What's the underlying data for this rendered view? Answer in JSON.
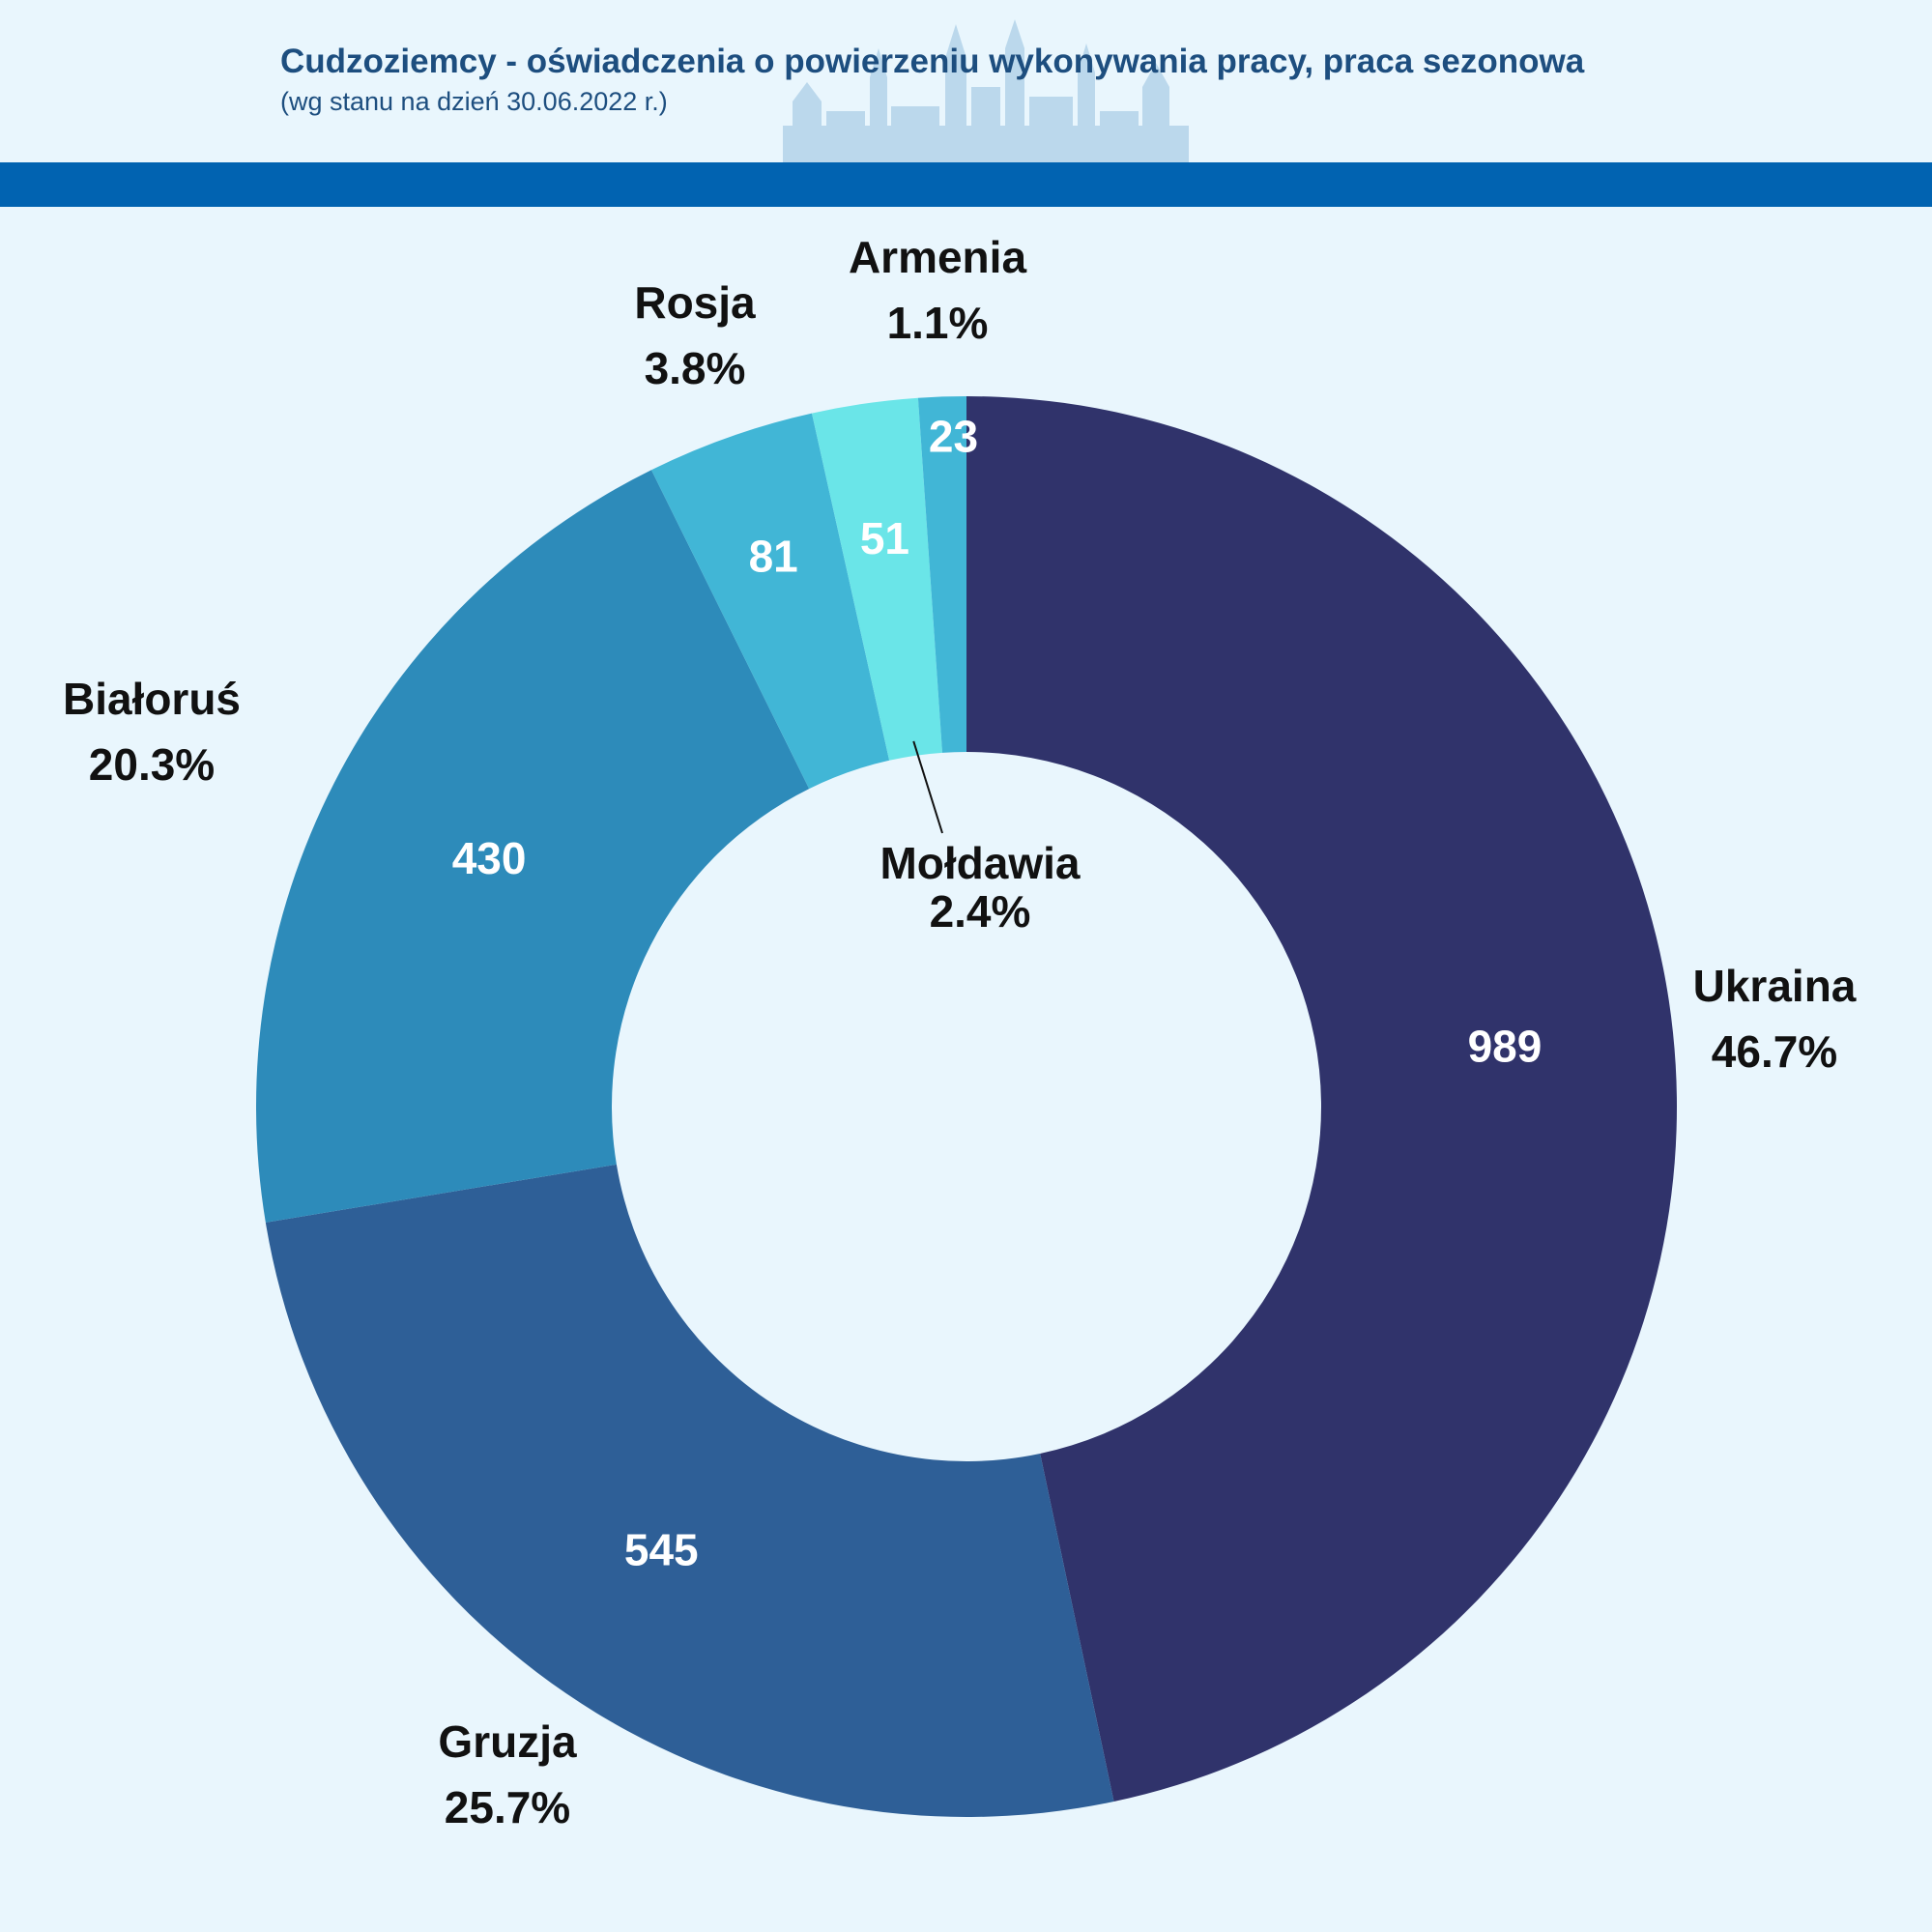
{
  "header": {
    "title": "Cudzoziemcy - oświadczenia o powierzeniu wykonywania pracy, praca sezonowa",
    "subtitle": "(wg stanu na dzień 30.06.2022 r.)"
  },
  "colors": {
    "background": "#e9f6fd",
    "title": "#1d4e7f",
    "header_bar": "#0163b1",
    "skyline": "#b3d3ea"
  },
  "chart_data": {
    "type": "pie",
    "donut": true,
    "start": "12 o'clock",
    "direction": "clockwise",
    "categories": [
      "Ukraina",
      "Gruzja",
      "Białoruś",
      "Rosja",
      "Mołdawia",
      "Armenia"
    ],
    "values": [
      989,
      545,
      430,
      81,
      51,
      23
    ],
    "percentages": [
      "46.7%",
      "25.7%",
      "20.3%",
      "3.8%",
      "2.4%",
      "1.1%"
    ],
    "value_labels": [
      "989",
      "545",
      "430",
      "81",
      "51",
      "23"
    ],
    "colors": [
      "#30336b",
      "#2e5f97",
      "#2d8bba",
      "#41b6d6",
      "#6ae5e8",
      "#41b6d6"
    ],
    "legend": "none"
  }
}
